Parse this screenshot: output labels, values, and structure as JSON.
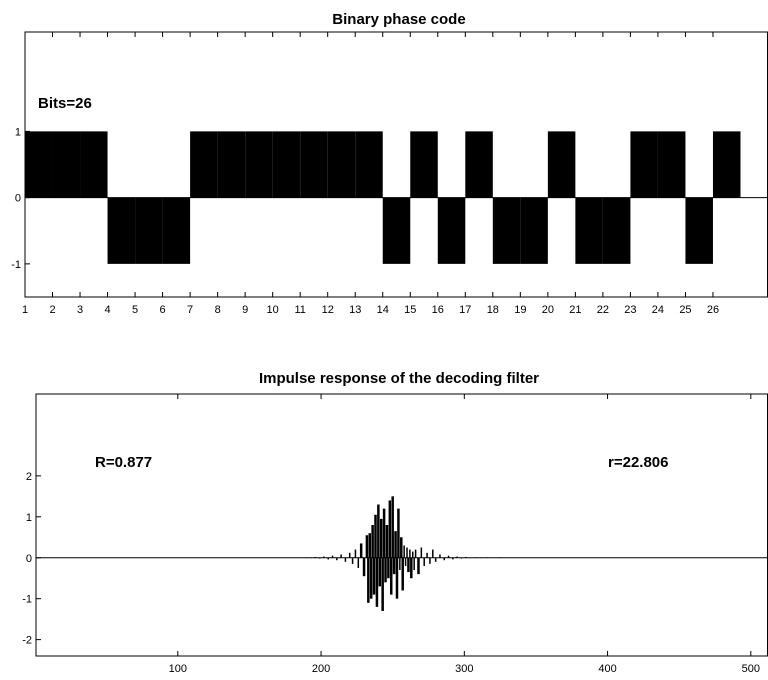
{
  "chart_data": [
    {
      "type": "bar",
      "title": "Binary phase code",
      "annotation": "Bits=26",
      "xlim": [
        1,
        28
      ],
      "ylim": [
        -1.5,
        2.5
      ],
      "x_ticks": [
        1,
        2,
        3,
        4,
        5,
        6,
        7,
        8,
        9,
        10,
        11,
        12,
        13,
        14,
        15,
        16,
        17,
        18,
        19,
        20,
        21,
        22,
        23,
        24,
        25,
        26
      ],
      "y_ticks": [
        -1,
        0,
        1
      ],
      "bits": [
        1,
        1,
        1,
        -1,
        -1,
        -1,
        1,
        1,
        1,
        1,
        1,
        1,
        1,
        -1,
        1,
        -1,
        1,
        -1,
        -1,
        1,
        -1,
        -1,
        1,
        1,
        -1,
        1
      ],
      "color": "#000000"
    },
    {
      "type": "line",
      "title": "Impulse response of the decoding filter",
      "annotations": [
        "R=0.877",
        "r=22.806"
      ],
      "xlim": [
        1,
        512
      ],
      "ylim": [
        -2.4,
        4
      ],
      "x_ticks": [
        100,
        200,
        300,
        400,
        500
      ],
      "y_ticks": [
        -2,
        -1,
        0,
        1,
        2
      ],
      "x": [
        190,
        193,
        196,
        199,
        202,
        205,
        208,
        211,
        214,
        217,
        220,
        222,
        224,
        226,
        228,
        230,
        232,
        233,
        234,
        235,
        236,
        237,
        238,
        239,
        240,
        241,
        242,
        243,
        244,
        245,
        246,
        247,
        248,
        249,
        250,
        251,
        252,
        253,
        254,
        255,
        256,
        257,
        258,
        259,
        260,
        261,
        262,
        263,
        264,
        265,
        266,
        268,
        270,
        272,
        274,
        276,
        278,
        280,
        283,
        286,
        289,
        292,
        295,
        298,
        301,
        304,
        308,
        312,
        316,
        320,
        325,
        330
      ],
      "y": [
        0.01,
        -0.01,
        0.02,
        -0.02,
        0.03,
        -0.04,
        0.05,
        -0.06,
        0.08,
        -0.1,
        0.12,
        -0.15,
        0.2,
        -0.25,
        0.35,
        -0.45,
        0.55,
        -1.1,
        0.6,
        -1.0,
        0.8,
        -0.9,
        1.05,
        -1.2,
        1.3,
        -0.7,
        0.95,
        -1.3,
        1.2,
        -0.6,
        0.8,
        -0.5,
        1.4,
        -0.9,
        1.5,
        -0.4,
        0.65,
        -1.0,
        1.2,
        -0.3,
        0.5,
        -0.8,
        0.3,
        -0.2,
        0.25,
        -0.35,
        0.2,
        -0.5,
        0.15,
        -0.3,
        0.2,
        -0.4,
        0.25,
        -0.2,
        0.12,
        -0.15,
        0.2,
        -0.1,
        0.08,
        -0.06,
        0.05,
        -0.04,
        0.03,
        -0.02,
        0.02,
        -0.01,
        0.01,
        -0.01,
        0.01,
        0.0,
        0.01,
        0.0
      ],
      "color": "#000000"
    }
  ]
}
